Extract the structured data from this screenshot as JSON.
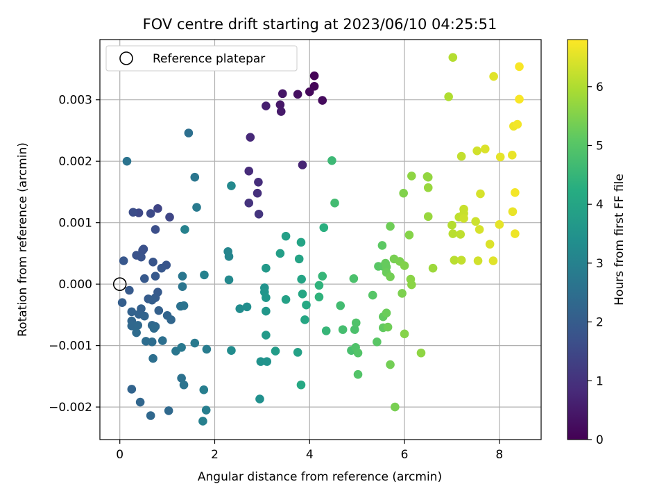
{
  "chart_data": {
    "type": "scatter",
    "title": "FOV centre drift starting at 2023/06/10 04:25:51",
    "xlabel": "Angular distance from reference (arcmin)",
    "ylabel": "Rotation from reference (arcmin)",
    "xlim": [
      -0.42,
      8.88
    ],
    "ylim": [
      -0.00253,
      0.00398
    ],
    "xticks": [
      0,
      2,
      4,
      6,
      8
    ],
    "xtick_labels": [
      "0",
      "2",
      "4",
      "6",
      "8"
    ],
    "yticks": [
      -0.002,
      -0.001,
      0.0,
      0.001,
      0.002,
      0.003
    ],
    "ytick_labels": [
      "−0.002",
      "−0.001",
      "0.000",
      "0.001",
      "0.002",
      "0.003"
    ],
    "grid": true,
    "legend": {
      "placement": "top-left",
      "entries": [
        "Reference platepar"
      ]
    },
    "reference_point": {
      "x": 0,
      "y": 0
    },
    "colorbar": {
      "label": "Hours from first FF file",
      "colormap": "viridis",
      "range": [
        0,
        6.8
      ],
      "ticks": [
        0,
        1,
        2,
        3,
        4,
        5,
        6
      ],
      "tick_labels": [
        "0",
        "1",
        "2",
        "3",
        "4",
        "5",
        "6"
      ]
    },
    "series": [
      {
        "points": [
          [
            4.1,
            0.00339,
            0.05
          ],
          [
            4.1,
            0.00322,
            0.1
          ],
          [
            4.0,
            0.00313,
            0.15
          ],
          [
            4.27,
            0.00299,
            0.2
          ],
          [
            3.75,
            0.00309,
            0.3
          ],
          [
            3.43,
            0.0031,
            0.4
          ],
          [
            3.38,
            0.00292,
            0.45
          ],
          [
            3.4,
            0.00281,
            0.5
          ],
          [
            3.08,
            0.0029,
            0.6
          ],
          [
            3.85,
            0.00194,
            0.7
          ],
          [
            2.75,
            0.00239,
            0.8
          ],
          [
            2.72,
            0.00184,
            0.85
          ],
          [
            2.92,
            0.00166,
            0.9
          ],
          [
            2.9,
            0.00148,
            0.95
          ],
          [
            2.72,
            0.00132,
            1.0
          ],
          [
            2.93,
            0.00114,
            1.05
          ],
          [
            0.8,
            0.00123,
            1.4
          ],
          [
            1.05,
            0.00109,
            1.45
          ],
          [
            0.4,
            0.00116,
            1.5
          ],
          [
            0.65,
            0.00115,
            1.55
          ],
          [
            0.28,
            0.00117,
            1.6
          ],
          [
            0.75,
            0.00089,
            1.65
          ],
          [
            0.5,
            0.00057,
            1.7
          ],
          [
            0.48,
            0.00055,
            1.7
          ],
          [
            0.35,
            0.00047,
            1.75
          ],
          [
            0.45,
            0.00044,
            1.75
          ],
          [
            0.7,
            0.00036,
            1.8
          ],
          [
            0.98,
            0.00031,
            1.8
          ],
          [
            0.88,
            0.00026,
            1.85
          ],
          [
            0.08,
            0.00038,
            1.85
          ],
          [
            0.52,
            9e-05,
            1.9
          ],
          [
            0.75,
            0.00013,
            1.9
          ],
          [
            0.2,
            -0.0001,
            1.95
          ],
          [
            0.8,
            -0.00013,
            1.95
          ],
          [
            0.75,
            -0.00022,
            2.0
          ],
          [
            0.6,
            -0.00024,
            2.0
          ],
          [
            0.68,
            -0.00026,
            2.05
          ],
          [
            0.05,
            -0.0003,
            2.05
          ],
          [
            0.45,
            -0.0004,
            2.1
          ],
          [
            0.82,
            -0.00043,
            2.1
          ],
          [
            0.25,
            -0.00045,
            2.15
          ],
          [
            0.4,
            -0.00049,
            2.15
          ],
          [
            0.52,
            -0.00052,
            2.2
          ],
          [
            1.0,
            -0.00051,
            2.2
          ],
          [
            1.08,
            -0.00058,
            2.25
          ],
          [
            0.25,
            -0.0006,
            2.25
          ],
          [
            0.25,
            -0.00068,
            2.3
          ],
          [
            0.68,
            -0.00067,
            2.3
          ],
          [
            0.38,
            -0.00067,
            2.35
          ],
          [
            0.75,
            -0.00069,
            2.35
          ],
          [
            0.72,
            -0.00072,
            2.4
          ],
          [
            0.35,
            -0.00079,
            2.4
          ],
          [
            0.55,
            -0.00093,
            2.45
          ],
          [
            0.68,
            -0.00094,
            2.45
          ],
          [
            0.9,
            -0.00092,
            2.5
          ],
          [
            0.7,
            -0.00121,
            2.5
          ],
          [
            0.25,
            -0.00171,
            2.2
          ],
          [
            0.43,
            -0.00192,
            2.25
          ],
          [
            0.65,
            -0.00214,
            2.3
          ],
          [
            1.03,
            -0.00206,
            2.35
          ],
          [
            1.3,
            -0.00153,
            2.55
          ],
          [
            1.35,
            -0.00164,
            2.6
          ],
          [
            1.28,
            -0.00036,
            2.55
          ],
          [
            1.35,
            -0.00035,
            2.6
          ],
          [
            1.32,
            -4e-05,
            2.65
          ],
          [
            1.32,
            0.00013,
            2.7
          ],
          [
            1.18,
            -0.00109,
            2.7
          ],
          [
            1.3,
            -0.00103,
            2.75
          ],
          [
            1.58,
            -0.00096,
            2.8
          ],
          [
            1.83,
            -0.00106,
            2.85
          ],
          [
            1.77,
            -0.00172,
            2.9
          ],
          [
            1.82,
            -0.00205,
            2.9
          ],
          [
            1.75,
            -0.00223,
            2.95
          ],
          [
            1.45,
            0.00246,
            2.5
          ],
          [
            1.58,
            0.00174,
            2.7
          ],
          [
            1.62,
            0.00125,
            2.8
          ],
          [
            0.15,
            0.002,
            2.6
          ],
          [
            1.37,
            0.00089,
            3.0
          ],
          [
            1.78,
            0.00015,
            3.0
          ],
          [
            2.28,
            0.00053,
            3.1
          ],
          [
            2.3,
            0.00045,
            3.1
          ],
          [
            2.3,
            7e-05,
            3.2
          ],
          [
            2.35,
            0.0016,
            3.2
          ],
          [
            2.35,
            -0.00108,
            3.3
          ],
          [
            2.53,
            -0.0004,
            3.3
          ],
          [
            2.68,
            -0.00037,
            3.35
          ],
          [
            2.95,
            -0.00187,
            3.4
          ],
          [
            2.97,
            -0.00126,
            3.45
          ],
          [
            3.1,
            -0.00126,
            3.5
          ],
          [
            3.05,
            -6e-05,
            3.5
          ],
          [
            3.05,
            -0.00013,
            3.55
          ],
          [
            3.08,
            -0.00022,
            3.6
          ],
          [
            3.08,
            -0.00044,
            3.6
          ],
          [
            3.08,
            0.00026,
            3.65
          ],
          [
            3.08,
            -0.00083,
            3.7
          ],
          [
            3.28,
            -0.00109,
            3.75
          ],
          [
            3.38,
            0.0005,
            3.8
          ],
          [
            3.5,
            0.00078,
            3.85
          ],
          [
            3.5,
            -0.00025,
            3.9
          ],
          [
            3.75,
            -0.00111,
            3.9
          ],
          [
            3.78,
            0.00041,
            3.95
          ],
          [
            3.82,
            0.00068,
            4.0
          ],
          [
            3.83,
            8e-05,
            4.0
          ],
          [
            3.85,
            -0.00016,
            4.05
          ],
          [
            3.9,
            -0.00058,
            4.05
          ],
          [
            3.93,
            -0.00034,
            4.1
          ],
          [
            3.82,
            -0.00164,
            4.1
          ],
          [
            4.3,
            0.00092,
            4.3
          ],
          [
            4.2,
            -2e-05,
            4.4
          ],
          [
            4.2,
            -0.00021,
            4.4
          ],
          [
            4.27,
            0.00013,
            4.5
          ],
          [
            4.35,
            -0.00076,
            4.5
          ],
          [
            4.47,
            0.00201,
            4.6
          ],
          [
            4.53,
            0.00132,
            4.7
          ],
          [
            4.65,
            -0.00035,
            4.7
          ],
          [
            4.7,
            -0.00074,
            4.75
          ],
          [
            4.88,
            -0.00108,
            4.8
          ],
          [
            4.93,
            9e-05,
            4.85
          ],
          [
            4.95,
            -0.00074,
            4.85
          ],
          [
            4.97,
            -0.00103,
            4.9
          ],
          [
            4.98,
            -0.00063,
            4.9
          ],
          [
            5.02,
            -0.00112,
            4.95
          ],
          [
            5.02,
            -0.00147,
            4.95
          ],
          [
            5.33,
            -0.00018,
            5.0
          ],
          [
            5.42,
            -0.00094,
            5.05
          ],
          [
            5.45,
            0.00029,
            5.05
          ],
          [
            5.53,
            0.00063,
            5.1
          ],
          [
            5.55,
            0.00029,
            5.1
          ],
          [
            5.55,
            -0.00053,
            5.15
          ],
          [
            5.55,
            -0.00071,
            5.15
          ],
          [
            5.6,
            0.00034,
            5.2
          ],
          [
            5.62,
            0.00028,
            5.2
          ],
          [
            5.62,
            0.00019,
            5.25
          ],
          [
            5.62,
            -0.00047,
            5.25
          ],
          [
            5.65,
            -0.0007,
            5.3
          ],
          [
            5.7,
            0.00094,
            5.3
          ],
          [
            5.7,
            0.00012,
            5.35
          ],
          [
            5.7,
            -0.00131,
            5.35
          ],
          [
            5.78,
            0.00041,
            5.4
          ],
          [
            5.8,
            -0.002,
            5.4
          ],
          [
            5.9,
            0.00037,
            5.45
          ],
          [
            5.95,
            -0.00015,
            5.45
          ],
          [
            5.98,
            0.00148,
            5.5
          ],
          [
            6.0,
            0.0003,
            5.5
          ],
          [
            6.0,
            -0.00081,
            5.55
          ],
          [
            6.1,
            0.0008,
            5.55
          ],
          [
            6.13,
            8e-05,
            5.6
          ],
          [
            6.15,
            -1e-05,
            5.6
          ],
          [
            6.15,
            0.00176,
            5.65
          ],
          [
            6.35,
            -0.00112,
            5.65
          ],
          [
            6.48,
            0.00175,
            5.7
          ],
          [
            6.5,
            0.00174,
            5.7
          ],
          [
            6.5,
            0.00157,
            5.75
          ],
          [
            6.5,
            0.0011,
            5.75
          ],
          [
            6.6,
            0.00026,
            5.8
          ],
          [
            6.93,
            0.00305,
            6.0
          ],
          [
            7.02,
            0.00369,
            6.05
          ],
          [
            7.0,
            0.00096,
            6.05
          ],
          [
            7.02,
            0.00082,
            6.1
          ],
          [
            7.05,
            0.00039,
            6.1
          ],
          [
            7.15,
            0.00109,
            6.15
          ],
          [
            7.18,
            0.00081,
            6.15
          ],
          [
            7.2,
            0.00039,
            6.2
          ],
          [
            7.2,
            0.00208,
            6.2
          ],
          [
            7.25,
            0.00122,
            6.25
          ],
          [
            7.25,
            0.00115,
            6.25
          ],
          [
            7.25,
            0.00107,
            6.3
          ],
          [
            7.5,
            0.00102,
            6.3
          ],
          [
            7.53,
            0.00217,
            6.35
          ],
          [
            7.55,
            0.00038,
            6.35
          ],
          [
            7.58,
            0.00089,
            6.4
          ],
          [
            7.6,
            0.00147,
            6.4
          ],
          [
            7.7,
            0.0022,
            6.45
          ],
          [
            7.8,
            0.00065,
            6.45
          ],
          [
            7.87,
            0.00038,
            6.5
          ],
          [
            7.88,
            0.00338,
            6.5
          ],
          [
            8.0,
            0.00097,
            6.55
          ],
          [
            8.02,
            0.00207,
            6.55
          ],
          [
            8.27,
            0.0021,
            6.6
          ],
          [
            8.28,
            0.00118,
            6.6
          ],
          [
            8.3,
            0.00257,
            6.65
          ],
          [
            8.33,
            0.00082,
            6.65
          ],
          [
            8.33,
            0.00149,
            6.7
          ],
          [
            8.38,
            0.0026,
            6.7
          ],
          [
            8.42,
            0.00301,
            6.75
          ],
          [
            8.42,
            0.00354,
            6.75
          ]
        ]
      }
    ]
  }
}
